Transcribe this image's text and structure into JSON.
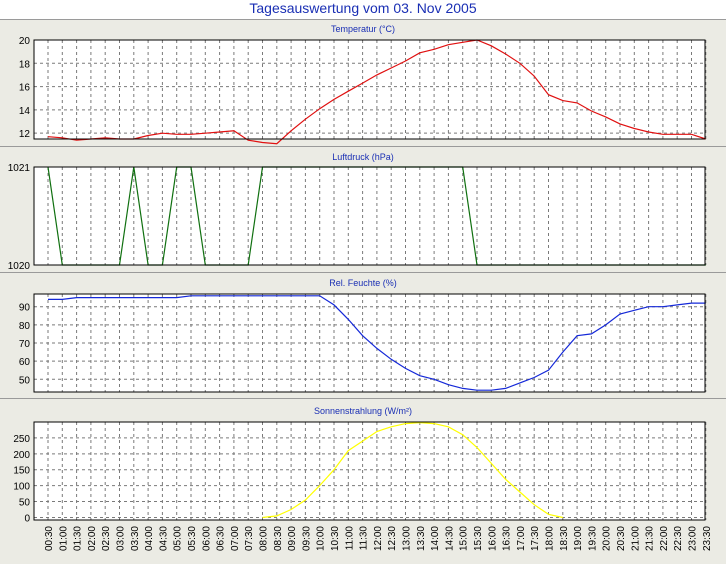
{
  "title": "Tagesauswertung vom 03. Nov 2005",
  "x_labels": [
    "00:30",
    "01:00",
    "01:30",
    "02:00",
    "02:30",
    "03:00",
    "03:30",
    "04:00",
    "04:30",
    "05:00",
    "05:30",
    "06:00",
    "06:30",
    "07:00",
    "07:30",
    "08:00",
    "08:30",
    "09:00",
    "09:30",
    "10:00",
    "10:30",
    "11:00",
    "11:30",
    "12:00",
    "12:30",
    "13:00",
    "13:30",
    "14:00",
    "14:30",
    "15:00",
    "15:30",
    "16:00",
    "16:30",
    "17:00",
    "17:30",
    "18:00",
    "18:30",
    "19:00",
    "19:30",
    "20:00",
    "20:30",
    "21:00",
    "21:30",
    "22:00",
    "22:30",
    "23:00",
    "23:30"
  ],
  "chart_data": [
    {
      "type": "line",
      "title": "Temperatur (°C)",
      "ylim": [
        11.5,
        20
      ],
      "yticks": [
        12,
        14,
        16,
        18,
        20
      ],
      "color": "#e01010",
      "grid": true,
      "values": [
        11.7,
        11.6,
        11.4,
        11.5,
        11.6,
        11.5,
        11.5,
        11.8,
        12.0,
        11.9,
        11.9,
        12.0,
        12.1,
        12.2,
        11.4,
        11.2,
        11.1,
        12.2,
        13.2,
        14.1,
        14.9,
        15.6,
        16.3,
        17.0,
        17.6,
        18.2,
        18.9,
        19.2,
        19.6,
        19.8,
        20.0,
        19.5,
        18.8,
        18.0,
        16.9,
        15.3,
        14.8,
        14.6,
        13.9,
        13.4,
        12.8,
        12.4,
        12.1,
        11.9,
        11.9,
        11.9,
        11.5
      ]
    },
    {
      "type": "line",
      "title": "Luftdruck (hPa)",
      "ylim": [
        1020,
        1021
      ],
      "yticks": [
        1020,
        1021
      ],
      "color": "#107010",
      "grid": true,
      "values": [
        1021,
        1020,
        1020,
        1020,
        1020,
        1020,
        1021,
        1020,
        1020,
        1021,
        1021,
        1020,
        1020,
        1020,
        1020,
        1021,
        1021,
        1021,
        1021,
        1021,
        1021,
        1021,
        1021,
        1021,
        1021,
        1021,
        1021,
        1021,
        1021,
        1021,
        1020,
        1020,
        1020,
        1020,
        1020,
        1020,
        1020,
        1020,
        1020,
        1020,
        1020,
        1020,
        1020,
        1020,
        1020,
        1020,
        1020
      ]
    },
    {
      "type": "line",
      "title": "Rel. Feuchte (%)",
      "ylim": [
        43,
        97
      ],
      "yticks": [
        50,
        60,
        70,
        80,
        90
      ],
      "color": "#1428d8",
      "grid": true,
      "values": [
        94,
        94,
        95,
        95,
        95,
        95,
        95,
        95,
        95,
        95,
        96,
        96,
        96,
        96,
        96,
        96,
        96,
        96,
        96,
        96,
        91,
        83,
        74,
        67,
        61,
        56,
        52,
        50,
        47,
        45,
        44,
        44,
        45,
        48,
        51,
        55,
        65,
        74,
        75,
        80,
        86,
        88,
        90,
        90,
        91,
        92,
        92
      ]
    },
    {
      "type": "line",
      "title": "Sonnenstrahlung (W/m²)",
      "ylim": [
        -8,
        300
      ],
      "yticks": [
        0,
        50,
        100,
        150,
        200,
        250
      ],
      "color": "#ffff00",
      "grid": true,
      "values": [
        null,
        null,
        null,
        null,
        null,
        null,
        null,
        null,
        null,
        null,
        null,
        null,
        null,
        null,
        null,
        0,
        5,
        25,
        55,
        100,
        150,
        210,
        240,
        270,
        285,
        295,
        298,
        295,
        285,
        260,
        220,
        170,
        120,
        80,
        40,
        10,
        0,
        null,
        null,
        null,
        null,
        null,
        null,
        null,
        null,
        null,
        null
      ]
    }
  ]
}
